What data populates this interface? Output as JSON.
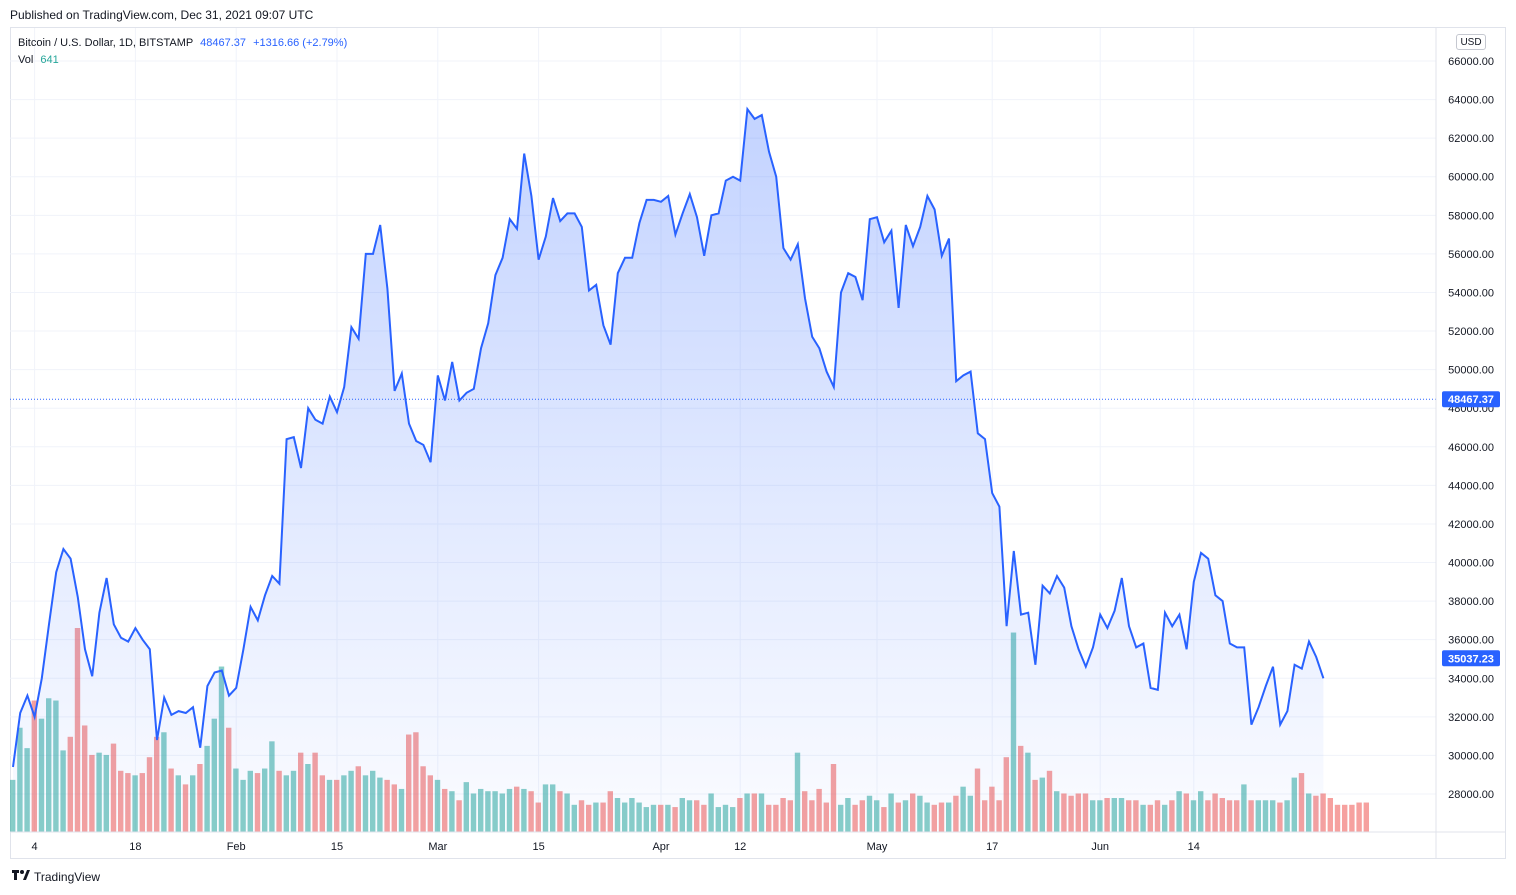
{
  "published": "Published on TradingView.com, Dec 31, 2021 09:07 UTC",
  "legend": {
    "symbol": "Bitcoin / U.S. Dollar, 1D, BITSTAMP",
    "price": "48467.37",
    "change": "+1316.66 (+2.79%)",
    "vol_label": "Vol",
    "vol_value": "641"
  },
  "currency_button": "USD",
  "footer": {
    "brand": "TradingView"
  },
  "colors": {
    "line": "#2962ff",
    "up": "#26a69a",
    "down": "#ef5350",
    "price_tag": "#2962ff"
  },
  "chart_data": {
    "type": "area",
    "ylim": [
      26000,
      67000
    ],
    "y_ticks": [
      28000,
      30000,
      32000,
      34000,
      36000,
      38000,
      40000,
      42000,
      44000,
      46000,
      48000,
      50000,
      52000,
      54000,
      56000,
      58000,
      60000,
      62000,
      64000,
      66000
    ],
    "x_ticks": [
      {
        "label": "4",
        "index": 3
      },
      {
        "label": "18",
        "index": 17
      },
      {
        "label": "Feb",
        "index": 31
      },
      {
        "label": "15",
        "index": 45
      },
      {
        "label": "Mar",
        "index": 59
      },
      {
        "label": "15",
        "index": 73
      },
      {
        "label": "Apr",
        "index": 90
      },
      {
        "label": "12",
        "index": 101
      },
      {
        "label": "May",
        "index": 120
      },
      {
        "label": "17",
        "index": 136
      },
      {
        "label": "Jun",
        "index": 151
      },
      {
        "label": "14",
        "index": 164
      }
    ],
    "price_tags": [
      {
        "label": "48467.37",
        "value": 48467.37,
        "color": "#2962ff"
      },
      {
        "label": "35037.23",
        "value": 35037.23,
        "color": "#2962ff"
      }
    ],
    "close_series": [
      29400,
      32200,
      33100,
      32000,
      34000,
      36800,
      39500,
      40700,
      40200,
      38200,
      35500,
      34100,
      37400,
      39200,
      36800,
      36100,
      35900,
      36600,
      36000,
      35500,
      30800,
      33000,
      32100,
      32300,
      32200,
      32500,
      30400,
      33600,
      34300,
      34400,
      33100,
      33500,
      35500,
      37700,
      37000,
      38300,
      39300,
      38900,
      46400,
      46500,
      44900,
      48000,
      47400,
      47200,
      48600,
      47800,
      49100,
      52200,
      51600,
      56000,
      56000,
      57500,
      54200,
      48900,
      49800,
      47200,
      46300,
      46100,
      45200,
      49700,
      48400,
      50400,
      48400,
      48800,
      49000,
      51100,
      52400,
      54900,
      55800,
      57800,
      57300,
      61200,
      59000,
      55700,
      56900,
      58900,
      57700,
      58100,
      58100,
      57400,
      54100,
      54400,
      52300,
      51300,
      55000,
      55800,
      55800,
      57600,
      58800,
      58800,
      58700,
      59000,
      57000,
      58100,
      59100,
      57900,
      55900,
      58000,
      58100,
      59800,
      60000,
      59800,
      63500,
      63000,
      63200,
      61300,
      60000,
      56300,
      55700,
      56500,
      53700,
      51700,
      51100,
      49900,
      49100,
      54000,
      55000,
      54800,
      53600,
      57800,
      57900,
      56600,
      57200,
      53200,
      57500,
      56400,
      57400,
      59000,
      58300,
      55900,
      56800,
      49400,
      49700,
      49900,
      46700,
      46400,
      43600,
      42900,
      36700,
      40600,
      37300,
      37400,
      34700,
      38800,
      38400,
      39300,
      38700,
      36700,
      35500,
      34600,
      35600,
      37300,
      36600,
      37500,
      39200,
      36700,
      35600,
      35800,
      33500,
      33400,
      37400,
      36700,
      37300,
      35500,
      39000,
      40500,
      40200,
      38300,
      38000,
      35800,
      35600,
      35600,
      31600,
      32500,
      33600,
      34600,
      31600,
      32300,
      34700,
      34500,
      35900,
      35100,
      34000
    ],
    "volume_series": [
      2300,
      4600,
      3700,
      5800,
      5000,
      5900,
      5800,
      3600,
      4200,
      9000,
      4700,
      3400,
      3500,
      3400,
      3900,
      2700,
      2600,
      2500,
      2600,
      3300,
      4200,
      4400,
      2800,
      2500,
      2100,
      2500,
      3000,
      3800,
      5000,
      7300,
      4600,
      2800,
      2300,
      2700,
      2600,
      2800,
      4000,
      2700,
      2500,
      2700,
      3500,
      3000,
      3500,
      2500,
      2300,
      2300,
      2500,
      2700,
      2900,
      2500,
      2700,
      2400,
      2300,
      2100,
      1900,
      4300,
      4400,
      2900,
      2500,
      2300,
      1900,
      1800,
      1400,
      2200,
      1700,
      1900,
      1800,
      1800,
      1700,
      1900,
      2000,
      1900,
      1800,
      1300,
      2100,
      2100,
      1800,
      1700,
      1200,
      1400,
      1200,
      1300,
      1300,
      1800,
      1500,
      1300,
      1500,
      1300,
      1100,
      1200,
      1200,
      1200,
      1100,
      1500,
      1400,
      1400,
      1200,
      1700,
      1100,
      1200,
      1100,
      1500,
      1700,
      1700,
      1700,
      1200,
      1200,
      1500,
      1400,
      3500,
      1800,
      1400,
      1900,
      1300,
      3000,
      1200,
      1500,
      1200,
      1400,
      1600,
      1400,
      1100,
      1700,
      1300,
      1400,
      1700,
      1600,
      1300,
      1200,
      1300,
      1300,
      1600,
      2000,
      1600,
      2800,
      1400,
      2000,
      1400,
      3300,
      8800,
      3800,
      3500,
      2300,
      2400,
      2700,
      1800,
      1700,
      1600,
      1700,
      1700,
      1400,
      1400,
      1500,
      1500,
      1500,
      1400,
      1400,
      1200,
      1200,
      1400,
      1200,
      1400,
      1800,
      1700,
      1400,
      1800,
      1400,
      1700,
      1500,
      1400,
      1400,
      2100,
      1400,
      1400,
      1400,
      1400,
      1300,
      1400,
      2400,
      2600,
      1700,
      1600,
      1700,
      1500,
      1200,
      1200,
      1200,
      1300,
      1300
    ],
    "volume_direction": "up_if_close_gt_prev",
    "last_point_visible": true
  }
}
